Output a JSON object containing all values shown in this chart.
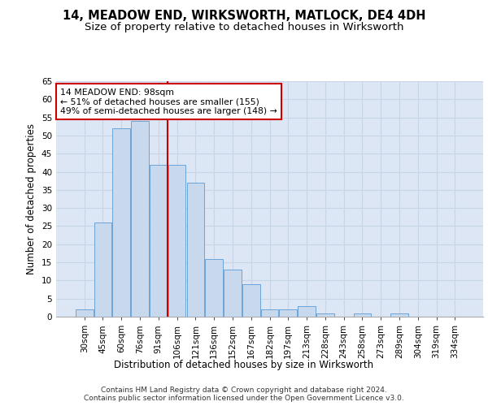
{
  "title1": "14, MEADOW END, WIRKSWORTH, MATLOCK, DE4 4DH",
  "title2": "Size of property relative to detached houses in Wirksworth",
  "xlabel": "Distribution of detached houses by size in Wirksworth",
  "ylabel": "Number of detached properties",
  "categories": [
    "30sqm",
    "45sqm",
    "60sqm",
    "76sqm",
    "91sqm",
    "106sqm",
    "121sqm",
    "136sqm",
    "152sqm",
    "167sqm",
    "182sqm",
    "197sqm",
    "213sqm",
    "228sqm",
    "243sqm",
    "258sqm",
    "273sqm",
    "289sqm",
    "304sqm",
    "319sqm",
    "334sqm"
  ],
  "values": [
    2,
    26,
    52,
    54,
    42,
    42,
    37,
    16,
    13,
    9,
    2,
    2,
    3,
    1,
    0,
    1,
    0,
    1,
    0,
    0,
    0
  ],
  "bar_color": "#c8d9ee",
  "bar_edge_color": "#5b9bd5",
  "vline_color": "#cc0000",
  "annotation_text": "14 MEADOW END: 98sqm\n← 51% of detached houses are smaller (155)\n49% of semi-detached houses are larger (148) →",
  "annotation_box_color": "white",
  "annotation_box_edge_color": "#cc0000",
  "ylim": [
    0,
    65
  ],
  "yticks": [
    0,
    5,
    10,
    15,
    20,
    25,
    30,
    35,
    40,
    45,
    50,
    55,
    60,
    65
  ],
  "grid_color": "#c8d4e8",
  "background_color": "#dce6f5",
  "footer1": "Contains HM Land Registry data © Crown copyright and database right 2024.",
  "footer2": "Contains public sector information licensed under the Open Government Licence v3.0.",
  "title_fontsize": 10.5,
  "subtitle_fontsize": 9.5,
  "axis_label_fontsize": 8.5,
  "tick_fontsize": 7.5,
  "footer_fontsize": 6.5
}
